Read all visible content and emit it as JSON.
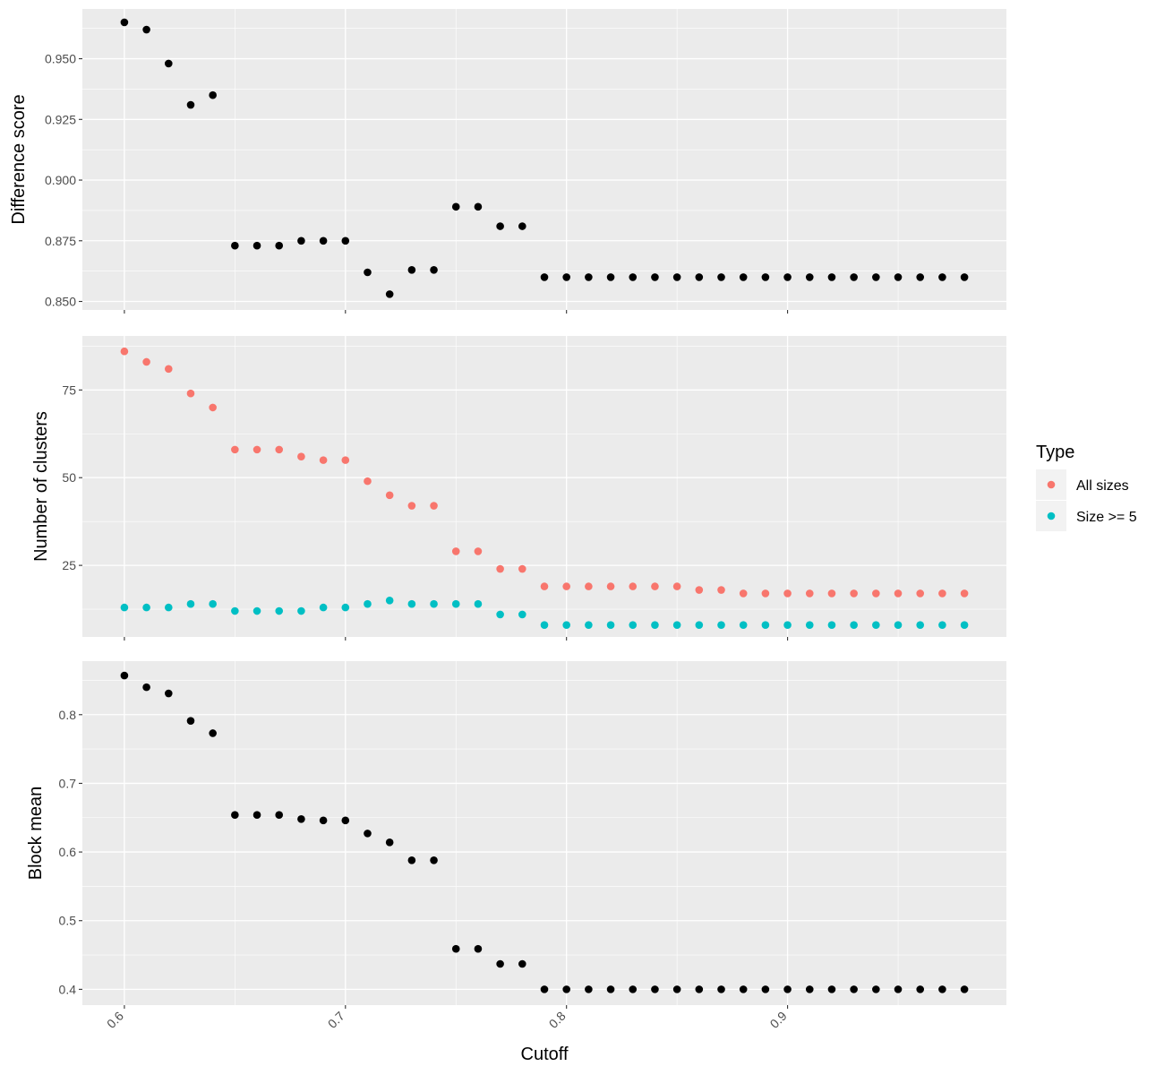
{
  "chart_data": {
    "type": "scatter",
    "xlabel": "Cutoff",
    "x_ticks": [
      0.6,
      0.7,
      0.8,
      0.9
    ],
    "x_tick_labels": [
      "0.6",
      "0.7",
      "0.8",
      "0.9"
    ],
    "xlim": [
      0.581,
      0.999
    ],
    "x": [
      0.6,
      0.61,
      0.62,
      0.63,
      0.64,
      0.65,
      0.66,
      0.67,
      0.68,
      0.69,
      0.7,
      0.71,
      0.72,
      0.73,
      0.74,
      0.75,
      0.76,
      0.77,
      0.78,
      0.79,
      0.8,
      0.81,
      0.82,
      0.83,
      0.84,
      0.85,
      0.86,
      0.87,
      0.88,
      0.89,
      0.9,
      0.91,
      0.92,
      0.93,
      0.94,
      0.95,
      0.96,
      0.97,
      0.98
    ],
    "grid": true,
    "legend": {
      "title": "Type",
      "position": "right",
      "entries": [
        {
          "label": "All sizes",
          "color": "#F8766D"
        },
        {
          "label": "Size >= 5",
          "color": "#00BFC4"
        }
      ]
    },
    "panels": [
      {
        "ylabel": "Difference score",
        "ylim": [
          0.8465,
          0.9705
        ],
        "y_ticks": [
          0.85,
          0.875,
          0.9,
          0.925,
          0.95
        ],
        "y_tick_labels": [
          "0.850",
          "0.875",
          "0.900",
          "0.925",
          "0.950"
        ],
        "series": [
          {
            "color": "#000000",
            "values": [
              0.965,
              0.962,
              0.948,
              0.931,
              0.935,
              0.873,
              0.873,
              0.873,
              0.875,
              0.875,
              0.875,
              0.862,
              0.853,
              0.863,
              0.863,
              0.889,
              0.889,
              0.881,
              0.881,
              0.86,
              0.86,
              0.86,
              0.86,
              0.86,
              0.86,
              0.86,
              0.86,
              0.86,
              0.86,
              0.86,
              0.86,
              0.86,
              0.86,
              0.86,
              0.86,
              0.86,
              0.86,
              0.86,
              0.86
            ]
          }
        ]
      },
      {
        "ylabel": "Number of clusters",
        "ylim": [
          4.6,
          90.4
        ],
        "y_ticks": [
          25,
          50,
          75
        ],
        "y_tick_labels": [
          "25",
          "50",
          "75"
        ],
        "series": [
          {
            "name": "All sizes",
            "color": "#F8766D",
            "values": [
              86,
              83,
              81,
              74,
              70,
              58,
              58,
              58,
              56,
              55,
              55,
              49,
              45,
              42,
              42,
              29,
              29,
              24,
              24,
              19,
              19,
              19,
              19,
              19,
              19,
              19,
              18,
              18,
              17,
              17,
              17,
              17,
              17,
              17,
              17,
              17,
              17,
              17,
              17
            ]
          },
          {
            "name": "Size >= 5",
            "color": "#00BFC4",
            "values": [
              13,
              13,
              13,
              14,
              14,
              12,
              12,
              12,
              12,
              13,
              13,
              14,
              15,
              14,
              14,
              14,
              14,
              11,
              11,
              8,
              8,
              8,
              8,
              8,
              8,
              8,
              8,
              8,
              8,
              8,
              8,
              8,
              8,
              8,
              8,
              8,
              8,
              8,
              8
            ]
          }
        ]
      },
      {
        "ylabel": "Block mean",
        "ylim": [
          0.377,
          0.878
        ],
        "y_ticks": [
          0.4,
          0.5,
          0.6,
          0.7,
          0.8
        ],
        "y_tick_labels": [
          "0.4",
          "0.5",
          "0.6",
          "0.7",
          "0.8"
        ],
        "series": [
          {
            "color": "#000000",
            "values": [
              0.857,
              0.84,
              0.831,
              0.791,
              0.773,
              0.654,
              0.654,
              0.654,
              0.648,
              0.646,
              0.646,
              0.627,
              0.614,
              0.588,
              0.588,
              0.459,
              0.459,
              0.437,
              0.437,
              0.4,
              0.4,
              0.4,
              0.4,
              0.4,
              0.4,
              0.4,
              0.4,
              0.4,
              0.4,
              0.4,
              0.4,
              0.4,
              0.4,
              0.4,
              0.4,
              0.4,
              0.4,
              0.4,
              0.4
            ]
          }
        ]
      }
    ]
  }
}
